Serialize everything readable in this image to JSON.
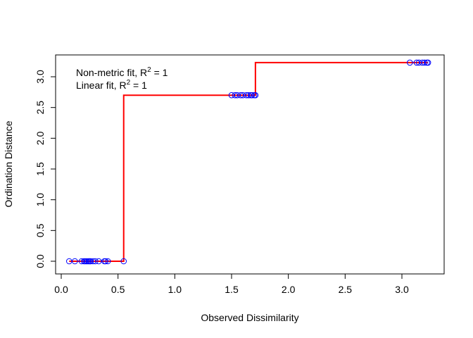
{
  "chart_data": {
    "type": "scatter",
    "title": "",
    "xlabel": "Observed Dissimilarity",
    "ylabel": "Ordination Distance",
    "xlim": [
      0,
      3.25
    ],
    "ylim": [
      -0.1,
      3.35
    ],
    "xticks": [
      "0.0",
      "0.5",
      "1.0",
      "1.5",
      "2.0",
      "2.5",
      "3.0"
    ],
    "yticks": [
      "0.0",
      "0.5",
      "1.0",
      "1.5",
      "2.0",
      "2.5",
      "3.0"
    ],
    "legend": {
      "position": "top-left",
      "line1_prefix": "Non-metric fit, R",
      "line1_sup": "2",
      "line1_suffix": " = 1",
      "line2_prefix": "Linear fit, R",
      "line2_sup": "2",
      "line2_suffix": " = 1"
    },
    "colors": {
      "points": "#0000ff",
      "step_line": "#ff0000",
      "axis": "#000000"
    },
    "series": [
      {
        "name": "points",
        "x": [
          0.07,
          0.12,
          0.18,
          0.2,
          0.21,
          0.22,
          0.23,
          0.24,
          0.25,
          0.26,
          0.28,
          0.3,
          0.33,
          0.38,
          0.39,
          0.41,
          0.55,
          1.5,
          1.53,
          1.55,
          1.58,
          1.6,
          1.63,
          1.65,
          1.67,
          1.68,
          1.7,
          1.71,
          3.07,
          3.13,
          3.15,
          3.18,
          3.2,
          3.22,
          3.23
        ],
        "y": [
          0,
          0,
          0,
          0,
          0,
          0,
          0,
          0,
          0,
          0,
          0,
          0,
          0,
          0,
          0,
          0,
          0,
          2.7,
          2.7,
          2.7,
          2.7,
          2.7,
          2.7,
          2.7,
          2.7,
          2.7,
          2.7,
          2.7,
          3.23,
          3.23,
          3.23,
          3.23,
          3.23,
          3.23,
          3.23
        ]
      },
      {
        "name": "step_fit",
        "x": [
          0.07,
          0.55,
          0.55,
          1.71,
          1.71,
          3.23
        ],
        "y": [
          0,
          0,
          2.7,
          2.7,
          3.23,
          3.23
        ]
      }
    ]
  }
}
